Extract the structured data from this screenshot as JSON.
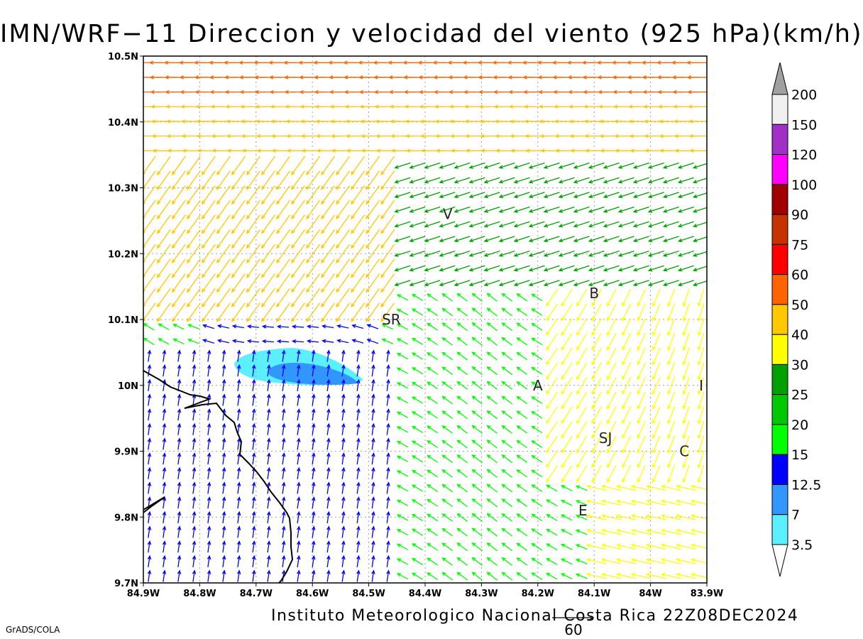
{
  "title": "IMN/WRF−11 Direccion y velocidad del viento (925 hPa)(km/h)",
  "footer": {
    "credit": "Instituto Meteorologico Nacional Costa Rica  22Z08DEC2024",
    "software": "GrADS/COLA",
    "reference_vector_label": "60"
  },
  "axes": {
    "lon_labels": [
      "84.9W",
      "84.8W",
      "84.7W",
      "84.6W",
      "84.5W",
      "84.4W",
      "84.3W",
      "84.2W",
      "84.1W",
      "84W",
      "83.9W"
    ],
    "lat_labels": [
      "10.5N",
      "10.4N",
      "10.3N",
      "10.2N",
      "10.1N",
      "10N",
      "9.9N",
      "9.8N",
      "9.7N"
    ],
    "lon_range": [
      -84.9,
      -83.9
    ],
    "lat_range": [
      9.7,
      10.5
    ],
    "grid": "dotted"
  },
  "places": [
    {
      "label": "V",
      "lon": -84.36,
      "lat": 10.26
    },
    {
      "label": "B",
      "lon": -84.1,
      "lat": 10.14
    },
    {
      "label": "SR",
      "lon": -84.46,
      "lat": 10.1
    },
    {
      "label": "A",
      "lon": -84.2,
      "lat": 10.0
    },
    {
      "label": "I",
      "lon": -83.91,
      "lat": 10.0
    },
    {
      "label": "SJ",
      "lon": -84.08,
      "lat": 9.92
    },
    {
      "label": "C",
      "lon": -83.94,
      "lat": 9.9
    },
    {
      "label": "E",
      "lon": -84.12,
      "lat": 9.81
    }
  ],
  "colorbar": {
    "labels": [
      "200",
      "150",
      "120",
      "100",
      "90",
      "75",
      "60",
      "50",
      "40",
      "30",
      "25",
      "20",
      "15",
      "12.5",
      "7",
      "3.5"
    ],
    "colors": [
      "#a0a0a0",
      "#f0f0f0",
      "#a030c8",
      "#ff00ff",
      "#a00000",
      "#c83200",
      "#ff0000",
      "#ff6400",
      "#ffc800",
      "#ffff00",
      "#00a000",
      "#00c800",
      "#00ff00",
      "#0000ff",
      "#3296ff",
      "#5af0ff",
      "#ffffff"
    ]
  },
  "colors": {
    "coast": "#000000",
    "grid": "#a0a0a0",
    "shading_light": "#5af0ff",
    "shading_dark": "#3296ff"
  }
}
